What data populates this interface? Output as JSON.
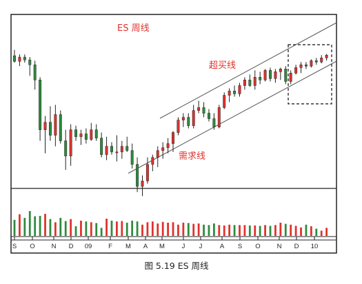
{
  "chart_data": {
    "type": "candlestick",
    "title": "ES 周线",
    "caption": "图 5.19  ES 周线",
    "xlabel": "",
    "ylabel": "",
    "x_tick_labels": [
      "S",
      "O",
      "N",
      "D",
      "09",
      "F",
      "M",
      "A",
      "M",
      "J",
      "J",
      "A",
      "S",
      "O",
      "N",
      "D",
      "10"
    ],
    "annotations": {
      "upper_channel": "超买线",
      "lower_channel": "需求线"
    },
    "colors": {
      "up": "#e0322c",
      "down": "#2e8b3e",
      "text_red": "#e0322c",
      "box": "#333333"
    },
    "grid": false,
    "legend": "none",
    "note_price_scale": "no price axis is printed; OHLC values below are relative price levels (index units) estimated from the drawing",
    "price_range": [
      0,
      100
    ],
    "volume_range": [
      0,
      100
    ],
    "candles": [
      {
        "o": 83.4,
        "h": 87.7,
        "l": 78.3,
        "c": 79.3,
        "v": 40
      },
      {
        "o": 79.3,
        "h": 84.4,
        "l": 75.8,
        "c": 82.4,
        "v": 54
      },
      {
        "o": 82.4,
        "h": 84.4,
        "l": 78.3,
        "c": 80.3,
        "v": 45
      },
      {
        "o": 80.3,
        "h": 82.4,
        "l": 68.7,
        "c": 76.8,
        "v": 62
      },
      {
        "o": 76.8,
        "h": 79.8,
        "l": 58.6,
        "c": 65.7,
        "v": 49
      },
      {
        "o": 65.7,
        "h": 67.7,
        "l": 21.2,
        "c": 29.3,
        "v": 50
      },
      {
        "o": 29.3,
        "h": 39.4,
        "l": 12.1,
        "c": 34.8,
        "v": 55
      },
      {
        "o": 34.8,
        "h": 46.5,
        "l": 21.2,
        "c": 25.3,
        "v": 42
      },
      {
        "o": 25.3,
        "h": 47.5,
        "l": 17.2,
        "c": 40.4,
        "v": 34
      },
      {
        "o": 40.4,
        "h": 43.4,
        "l": 19.2,
        "c": 21.2,
        "v": 45
      },
      {
        "o": 21.2,
        "h": 29.3,
        "l": 0.0,
        "c": 10.1,
        "v": 37
      },
      {
        "o": 10.1,
        "h": 33.3,
        "l": 3.0,
        "c": 29.3,
        "v": 42
      },
      {
        "o": 29.3,
        "h": 32.3,
        "l": 21.2,
        "c": 24.2,
        "v": 24
      },
      {
        "o": 24.2,
        "h": 29.3,
        "l": 18.2,
        "c": 26.3,
        "v": 38
      },
      {
        "o": 26.3,
        "h": 30.3,
        "l": 19.2,
        "c": 22.2,
        "v": 36
      },
      {
        "o": 22.2,
        "h": 34.3,
        "l": 21.2,
        "c": 29.3,
        "v": 34
      },
      {
        "o": 29.3,
        "h": 33.3,
        "l": 21.2,
        "c": 23.2,
        "v": 32
      },
      {
        "o": 23.2,
        "h": 27.3,
        "l": 9.1,
        "c": 11.1,
        "v": 20
      },
      {
        "o": 11.1,
        "h": 24.2,
        "l": 7.1,
        "c": 17.2,
        "v": 43
      },
      {
        "o": 17.2,
        "h": 20.2,
        "l": 11.1,
        "c": 13.1,
        "v": 38
      },
      {
        "o": 13.1,
        "h": 25.3,
        "l": 6.1,
        "c": 13.1,
        "v": 36
      },
      {
        "o": 13.1,
        "h": 21.2,
        "l": 8.1,
        "c": 17.2,
        "v": 37
      },
      {
        "o": 17.2,
        "h": 24.2,
        "l": 13.1,
        "c": 14.1,
        "v": 33
      },
      {
        "o": 14.1,
        "h": 19.2,
        "l": 1.0,
        "c": 4.0,
        "v": 38
      },
      {
        "o": 4.0,
        "h": 9.1,
        "l": -16.2,
        "c": -12.1,
        "v": 36
      },
      {
        "o": -12.1,
        "h": -4.0,
        "l": -19.2,
        "c": -8.1,
        "v": 28
      },
      {
        "o": -8.1,
        "h": 9.1,
        "l": -10.1,
        "c": 4.0,
        "v": 34
      },
      {
        "o": 4.0,
        "h": 11.1,
        "l": -1.0,
        "c": 9.1,
        "v": 36
      },
      {
        "o": 9.1,
        "h": 17.2,
        "l": 2.0,
        "c": 14.1,
        "v": 31
      },
      {
        "o": 14.1,
        "h": 20.2,
        "l": 8.1,
        "c": 16.2,
        "v": 35
      },
      {
        "o": 16.2,
        "h": 23.2,
        "l": 12.1,
        "c": 19.2,
        "v": 33
      },
      {
        "o": 19.2,
        "h": 28.3,
        "l": 13.1,
        "c": 27.3,
        "v": 34
      },
      {
        "o": 27.3,
        "h": 38.4,
        "l": 25.3,
        "c": 36.4,
        "v": 28
      },
      {
        "o": 36.4,
        "h": 41.4,
        "l": 31.3,
        "c": 38.4,
        "v": 33
      },
      {
        "o": 38.4,
        "h": 41.4,
        "l": 30.3,
        "c": 32.3,
        "v": 32
      },
      {
        "o": 32.3,
        "h": 47.5,
        "l": 30.3,
        "c": 43.4,
        "v": 30
      },
      {
        "o": 43.4,
        "h": 50.5,
        "l": 41.4,
        "c": 45.5,
        "v": 31
      },
      {
        "o": 45.5,
        "h": 49.5,
        "l": 38.4,
        "c": 41.4,
        "v": 28
      },
      {
        "o": 41.4,
        "h": 44.4,
        "l": 35.4,
        "c": 37.4,
        "v": 27
      },
      {
        "o": 37.4,
        "h": 41.4,
        "l": 29.3,
        "c": 31.3,
        "v": 31
      },
      {
        "o": 31.3,
        "h": 47.5,
        "l": 30.3,
        "c": 45.5,
        "v": 27
      },
      {
        "o": 45.5,
        "h": 56.6,
        "l": 44.4,
        "c": 54.5,
        "v": 26
      },
      {
        "o": 54.5,
        "h": 59.6,
        "l": 49.5,
        "c": 57.6,
        "v": 28
      },
      {
        "o": 57.6,
        "h": 61.6,
        "l": 53.5,
        "c": 55.6,
        "v": 27
      },
      {
        "o": 55.6,
        "h": 63.6,
        "l": 53.5,
        "c": 61.6,
        "v": 27
      },
      {
        "o": 61.6,
        "h": 67.7,
        "l": 58.6,
        "c": 65.7,
        "v": 27
      },
      {
        "o": 65.7,
        "h": 69.7,
        "l": 60.6,
        "c": 61.6,
        "v": 26
      },
      {
        "o": 61.6,
        "h": 72.7,
        "l": 58.6,
        "c": 67.7,
        "v": 26
      },
      {
        "o": 67.7,
        "h": 71.7,
        "l": 62.6,
        "c": 65.7,
        "v": 25
      },
      {
        "o": 65.7,
        "h": 73.7,
        "l": 64.6,
        "c": 72.7,
        "v": 27
      },
      {
        "o": 72.7,
        "h": 74.7,
        "l": 64.6,
        "c": 66.7,
        "v": 25
      },
      {
        "o": 66.7,
        "h": 73.7,
        "l": 63.6,
        "c": 71.7,
        "v": 27
      },
      {
        "o": 71.7,
        "h": 74.7,
        "l": 65.7,
        "c": 73.7,
        "v": 33
      },
      {
        "o": 73.7,
        "h": 75.8,
        "l": 62.6,
        "c": 64.6,
        "v": 30
      },
      {
        "o": 64.6,
        "h": 72.7,
        "l": 62.6,
        "c": 70.7,
        "v": 28
      },
      {
        "o": 70.7,
        "h": 76.8,
        "l": 69.7,
        "c": 74.7,
        "v": 25
      },
      {
        "o": 74.7,
        "h": 78.8,
        "l": 70.7,
        "c": 76.8,
        "v": 21
      },
      {
        "o": 76.8,
        "h": 78.8,
        "l": 73.7,
        "c": 75.8,
        "v": 28
      },
      {
        "o": 75.8,
        "h": 80.8,
        "l": 74.7,
        "c": 79.8,
        "v": 24
      },
      {
        "o": 79.8,
        "h": 81.8,
        "l": 76.8,
        "c": 78.8,
        "v": 18
      },
      {
        "o": 78.8,
        "h": 83.8,
        "l": 77.8,
        "c": 81.8,
        "v": 13
      },
      {
        "o": 81.8,
        "h": 84.8,
        "l": 79.8,
        "c": 83.8,
        "v": 20
      }
    ]
  }
}
